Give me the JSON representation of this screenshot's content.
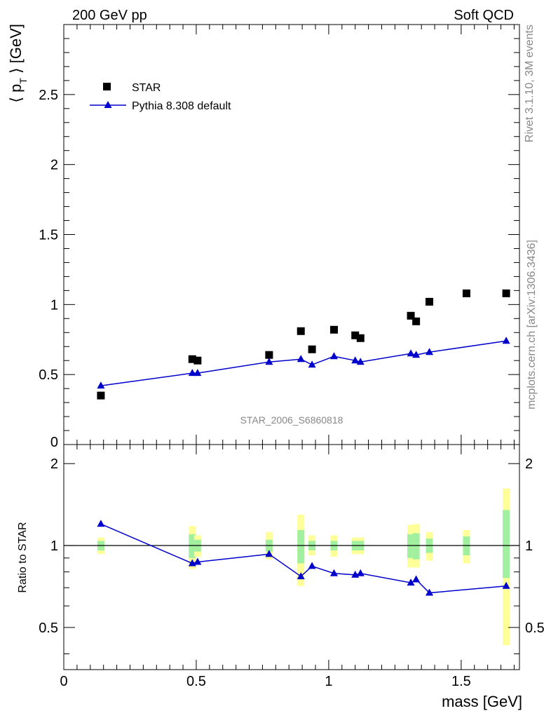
{
  "header": {
    "left": "200 GeV pp",
    "right": "Soft QCD"
  },
  "side_labels": {
    "rivet": "Rivet 3.1.10,  3M events",
    "mcplots": "mcplots.cern.ch [arXiv:1306.3436]"
  },
  "watermark": "STAR_2006_S6860818",
  "colors": {
    "data": "#000000",
    "mc": "#0000cc",
    "band_inner": "#a0f0a0",
    "band_outer": "#ffff99"
  },
  "chart_data": [
    {
      "type": "scatter",
      "ylabel_main": "⟨ p",
      "ylabel_sub": "T",
      "ylabel_tail": " ⟩ [GeV]",
      "xlim": [
        0,
        1.72
      ],
      "ylim": [
        0,
        3.0
      ],
      "yticks": [
        0.5,
        1,
        1.5,
        2,
        2.5
      ],
      "ytick_labels": [
        "0.5",
        "1",
        "1.5",
        "2",
        "2.5"
      ],
      "ytick_zero_label": "0",
      "legend": {
        "placement": "top-left",
        "data_label": "STAR",
        "mc_label": "Pythia 8.308 default"
      },
      "series": [
        {
          "name": "STAR",
          "style": "markers",
          "x": [
            0.14,
            0.485,
            0.505,
            0.775,
            0.895,
            0.937,
            1.02,
            1.1,
            1.12,
            1.31,
            1.33,
            1.38,
            1.52,
            1.67
          ],
          "y": [
            0.35,
            0.61,
            0.6,
            0.64,
            0.81,
            0.68,
            0.82,
            0.78,
            0.76,
            0.92,
            0.88,
            1.02,
            1.08,
            1.08
          ]
        },
        {
          "name": "Pythia 8.308 default",
          "style": "line-markers",
          "x": [
            0.14,
            0.485,
            0.505,
            0.775,
            0.895,
            0.937,
            1.02,
            1.1,
            1.12,
            1.31,
            1.33,
            1.38,
            1.67
          ],
          "y": [
            0.42,
            0.51,
            0.51,
            0.59,
            0.61,
            0.57,
            0.63,
            0.6,
            0.59,
            0.65,
            0.64,
            0.66,
            0.74
          ]
        }
      ]
    },
    {
      "type": "line",
      "ylabel": "Ratio to STAR",
      "xlabel": "mass [GeV]",
      "xlim": [
        0,
        1.72
      ],
      "ylim": [
        0.35,
        2.35
      ],
      "yticks": [
        0.5,
        1,
        2
      ],
      "ytick_labels": [
        "0.5",
        "1",
        "2"
      ],
      "xticks": [
        0,
        0.5,
        1,
        1.5
      ],
      "xtick_labels": [
        "0",
        "0.5",
        "1",
        "1.5"
      ],
      "reference_line": 1,
      "bands": {
        "x": [
          0.14,
          0.485,
          0.505,
          0.775,
          0.895,
          0.937,
          1.02,
          1.1,
          1.12,
          1.31,
          1.33,
          1.38,
          1.52,
          1.67
        ],
        "inner_low": [
          0.96,
          0.9,
          0.95,
          0.95,
          0.86,
          0.96,
          0.96,
          0.96,
          0.96,
          0.9,
          0.89,
          0.94,
          0.92,
          0.76
        ],
        "inner_high": [
          1.04,
          1.1,
          1.05,
          1.05,
          1.14,
          1.04,
          1.04,
          1.04,
          1.04,
          1.1,
          1.11,
          1.06,
          1.08,
          1.35
        ],
        "outer_low": [
          0.93,
          0.82,
          0.91,
          0.89,
          0.71,
          0.92,
          0.91,
          0.93,
          0.93,
          0.83,
          0.83,
          0.88,
          0.86,
          0.43
        ],
        "outer_high": [
          1.07,
          1.18,
          1.09,
          1.12,
          1.3,
          1.09,
          1.09,
          1.07,
          1.07,
          1.19,
          1.2,
          1.12,
          1.14,
          1.62
        ]
      },
      "series": [
        {
          "name": "Pythia 8.308 default",
          "x": [
            0.14,
            0.485,
            0.505,
            0.775,
            0.895,
            0.937,
            1.02,
            1.1,
            1.12,
            1.31,
            1.33,
            1.38,
            1.67
          ],
          "y": [
            1.2,
            0.86,
            0.87,
            0.93,
            0.77,
            0.84,
            0.79,
            0.78,
            0.79,
            0.73,
            0.75,
            0.67,
            0.71
          ]
        }
      ]
    }
  ]
}
